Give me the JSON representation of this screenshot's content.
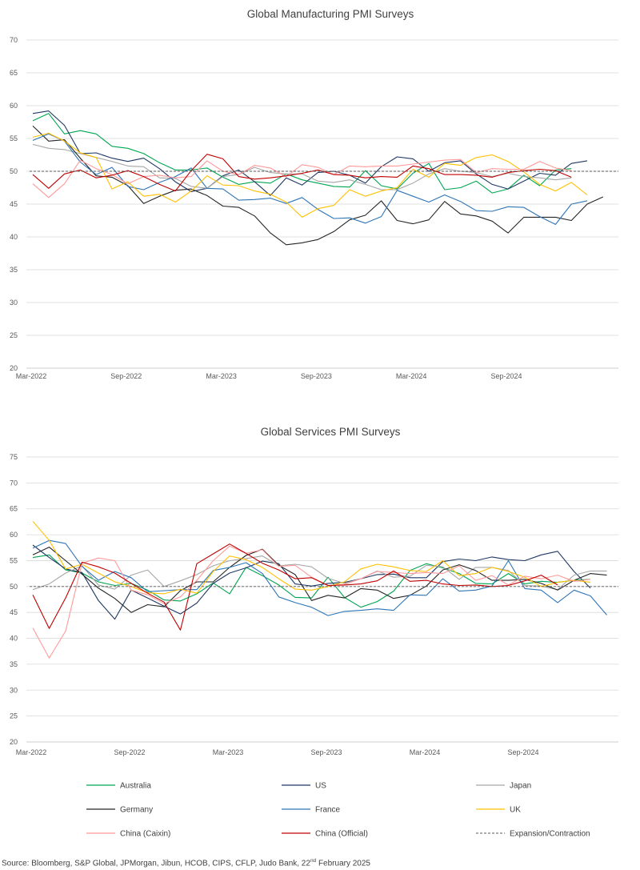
{
  "chart_data": [
    {
      "type": "line",
      "title": "Global Manufacturing PMI Surveys",
      "ylim": [
        20,
        70
      ],
      "yticks": [
        "20",
        "25",
        "30",
        "35",
        "40",
        "45",
        "50",
        "55",
        "60",
        "65",
        "70"
      ],
      "xticks": [
        "Mar-2022",
        "Sep-2022",
        "Mar-2023",
        "Sep-2023",
        "Mar-2024",
        "Sep-2024"
      ],
      "x_start": "Mar-2022",
      "grid": true,
      "series": [
        {
          "name": "Australia",
          "color": "#00a651",
          "values": [
            57.7,
            58.8,
            55.7,
            56.2,
            55.7,
            53.8,
            53.5,
            52.7,
            51.3,
            50.2,
            50.2,
            50.5,
            49.1,
            48.0,
            48.4,
            48.2,
            49.6,
            48.7,
            48.2,
            47.7,
            47.6,
            50.1,
            47.8,
            47.3,
            49.7,
            51.2,
            47.2,
            47.5,
            48.5,
            46.7,
            47.3,
            49.4,
            47.8,
            50.2,
            50.4
          ]
        },
        {
          "name": "US",
          "color": "#1f3864",
          "values": [
            58.8,
            59.2,
            57.0,
            52.7,
            52.8,
            52.0,
            51.5,
            52.0,
            50.4,
            48.4,
            46.9,
            47.4,
            49.3,
            50.2,
            48.4,
            46.3,
            49.0,
            47.9,
            49.8,
            50.0,
            49.4,
            48.2,
            50.7,
            52.2,
            51.9,
            50.0,
            51.3,
            51.6,
            49.6,
            48.0,
            47.3,
            48.5,
            49.7,
            49.4,
            51.2,
            51.6
          ]
        },
        {
          "name": "Japan",
          "color": "#a6a6a6",
          "values": [
            54.1,
            53.5,
            53.3,
            52.7,
            52.1,
            51.5,
            50.8,
            50.7,
            49.0,
            48.9,
            47.7,
            47.4,
            49.2,
            49.5,
            50.6,
            49.8,
            49.6,
            49.6,
            48.5,
            48.3,
            48.7,
            48.0,
            47.2,
            47.2,
            48.2,
            49.6,
            50.4,
            50.0,
            49.8,
            49.2,
            49.7,
            49.2,
            49.0,
            48.7,
            49.0
          ]
        },
        {
          "name": "Germany",
          "color": "#262626",
          "values": [
            56.9,
            54.6,
            54.8,
            52.0,
            49.3,
            49.1,
            47.8,
            45.1,
            46.2,
            47.1,
            47.3,
            46.3,
            44.7,
            44.5,
            43.2,
            40.6,
            38.8,
            39.1,
            39.6,
            40.8,
            42.6,
            43.3,
            45.5,
            42.5,
            42.0,
            42.6,
            45.4,
            43.5,
            43.2,
            42.4,
            40.6,
            43.0,
            43.0,
            43.0,
            42.5,
            45.0,
            46.1
          ]
        },
        {
          "name": "France",
          "color": "#2e75b6",
          "values": [
            54.7,
            55.7,
            54.6,
            51.4,
            49.5,
            50.6,
            47.7,
            47.2,
            48.3,
            49.2,
            50.5,
            47.4,
            47.3,
            45.6,
            45.7,
            45.9,
            45.1,
            46.0,
            44.2,
            42.8,
            42.9,
            42.1,
            43.1,
            47.1,
            46.2,
            45.3,
            46.4,
            45.4,
            44.0,
            43.9,
            44.6,
            44.5,
            43.1,
            41.9,
            45.0,
            45.5
          ]
        },
        {
          "name": "UK",
          "color": "#ffc000",
          "values": [
            55.2,
            55.8,
            54.6,
            52.8,
            52.1,
            47.3,
            48.4,
            46.2,
            46.5,
            45.3,
            47.0,
            49.3,
            47.9,
            47.8,
            47.0,
            46.5,
            45.3,
            43.0,
            44.3,
            44.8,
            47.2,
            46.2,
            47.0,
            47.5,
            50.3,
            49.1,
            51.2,
            50.9,
            52.1,
            52.5,
            51.5,
            49.9,
            48.0,
            47.0,
            48.3,
            46.4
          ]
        },
        {
          "name": "China (Caixin)",
          "color": "#ff9999",
          "values": [
            48.1,
            46.0,
            48.1,
            51.7,
            50.4,
            49.5,
            48.1,
            49.2,
            49.4,
            49.0,
            49.2,
            51.6,
            50.0,
            49.5,
            50.9,
            50.5,
            49.2,
            51.0,
            50.6,
            49.5,
            50.8,
            50.7,
            50.8,
            50.8,
            51.1,
            51.4,
            51.7,
            51.8,
            49.8,
            50.4,
            50.3,
            50.3,
            51.5,
            50.5,
            50.1
          ]
        },
        {
          "name": "China (Official)",
          "color": "#c00000",
          "values": [
            49.5,
            47.4,
            49.6,
            50.2,
            49.0,
            49.4,
            50.1,
            49.2,
            48.0,
            47.0,
            50.1,
            52.6,
            51.9,
            49.2,
            48.8,
            49.0,
            49.3,
            49.7,
            50.2,
            49.5,
            49.4,
            49.0,
            49.2,
            49.1,
            50.8,
            50.4,
            49.5,
            49.5,
            49.4,
            49.1,
            49.8,
            50.1,
            50.3,
            50.1,
            49.1
          ]
        },
        {
          "name": "Expansion/Contraction",
          "color": "#595959",
          "dashed": true,
          "values": [
            50,
            50
          ]
        }
      ]
    },
    {
      "type": "line",
      "title": "Global Services PMI Surveys",
      "ylim": [
        20,
        75
      ],
      "yticks": [
        "20",
        "25",
        "30",
        "35",
        "40",
        "45",
        "50",
        "55",
        "60",
        "65",
        "70",
        "75"
      ],
      "xticks": [
        "Mar-2022",
        "Sep-2022",
        "Mar-2023",
        "Sep-2023",
        "Mar-2024",
        "Sep-2024"
      ],
      "x_start": "Mar-2022",
      "grid": true,
      "series": [
        {
          "name": "Australia",
          "color": "#00a651",
          "values": [
            55.6,
            56.1,
            53.2,
            52.6,
            50.9,
            50.2,
            50.6,
            49.3,
            47.4,
            47.2,
            48.6,
            50.7,
            48.6,
            53.7,
            52.1,
            50.3,
            47.9,
            47.8,
            51.8,
            47.9,
            46.0,
            47.1,
            49.1,
            53.1,
            54.4,
            53.6,
            52.5,
            50.6,
            50.5,
            52.5,
            50.5,
            51.0,
            50.8,
            51.2,
            51.4
          ]
        },
        {
          "name": "US",
          "color": "#1f3864",
          "values": [
            58.0,
            55.6,
            53.4,
            52.7,
            47.3,
            43.7,
            49.3,
            47.8,
            46.2,
            44.7,
            46.8,
            50.6,
            52.6,
            53.6,
            54.9,
            54.4,
            50.5,
            50.1,
            50.6,
            50.8,
            51.5,
            52.3,
            52.4,
            51.7,
            51.7,
            54.8,
            55.3,
            55.0,
            55.7,
            55.2,
            55.0,
            56.1,
            56.8,
            52.9,
            49.7
          ]
        },
        {
          "name": "Japan",
          "color": "#a6a6a6",
          "values": [
            49.4,
            50.5,
            52.6,
            54.0,
            50.3,
            49.5,
            52.2,
            53.2,
            50.0,
            51.1,
            52.3,
            54.0,
            55.0,
            55.4,
            55.9,
            54.0,
            54.3,
            53.8,
            51.6,
            50.6,
            51.5,
            53.0,
            51.8,
            52.0,
            54.1,
            53.8,
            51.4,
            53.7,
            53.7,
            53.1,
            50.2,
            50.1,
            49.4,
            52.2,
            53.0,
            53.0
          ]
        },
        {
          "name": "Germany",
          "color": "#262626",
          "values": [
            56.1,
            57.6,
            55.0,
            52.4,
            49.7,
            47.7,
            45.0,
            46.5,
            46.1,
            49.2,
            50.9,
            50.9,
            53.7,
            56.0,
            57.2,
            54.1,
            52.3,
            47.3,
            48.3,
            47.8,
            49.6,
            49.3,
            47.7,
            48.3,
            50.1,
            53.2,
            54.2,
            53.1,
            51.2,
            51.2,
            51.4,
            50.6,
            49.3,
            51.2,
            52.5,
            52.2
          ]
        },
        {
          "name": "France",
          "color": "#2e75b6",
          "values": [
            57.4,
            58.9,
            58.3,
            53.9,
            51.2,
            52.9,
            51.7,
            49.0,
            49.2,
            49.4,
            49.4,
            53.1,
            53.7,
            54.6,
            52.5,
            48.0,
            46.9,
            46.0,
            44.4,
            45.2,
            45.4,
            45.7,
            45.4,
            48.4,
            48.3,
            51.5,
            49.1,
            49.3,
            50.1,
            55.0,
            49.6,
            49.3,
            46.9,
            49.3,
            48.2,
            44.5
          ]
        },
        {
          "name": "UK",
          "color": "#ffc000",
          "values": [
            62.6,
            58.9,
            53.4,
            54.3,
            52.6,
            50.9,
            50.0,
            48.8,
            48.6,
            49.5,
            48.7,
            52.9,
            55.9,
            55.2,
            53.7,
            51.5,
            49.5,
            49.3,
            50.0,
            50.9,
            53.4,
            54.3,
            53.8,
            53.1,
            52.9,
            55.0,
            52.1,
            52.5,
            53.7,
            52.9,
            51.8,
            50.0,
            50.8,
            51.2,
            50.8
          ]
        },
        {
          "name": "China (Caixin)",
          "color": "#ff9999",
          "values": [
            42.0,
            36.2,
            41.4,
            54.5,
            55.5,
            55.0,
            49.3,
            48.4,
            46.7,
            48.0,
            51.2,
            55.0,
            57.8,
            56.4,
            57.1,
            53.9,
            54.1,
            51.8,
            50.2,
            50.4,
            51.5,
            52.9,
            52.7,
            52.5,
            52.7,
            52.5,
            54.0,
            51.2,
            52.1,
            50.3,
            52.0,
            51.5,
            52.2,
            51.0,
            51.4
          ]
        },
        {
          "name": "China (Official)",
          "color": "#c00000",
          "values": [
            48.4,
            41.9,
            47.8,
            54.7,
            53.8,
            52.6,
            50.6,
            48.7,
            47.0,
            41.6,
            54.4,
            56.3,
            58.2,
            56.4,
            54.5,
            53.2,
            51.5,
            51.7,
            50.2,
            50.3,
            50.5,
            51.1,
            53.0,
            51.0,
            51.2,
            50.5,
            50.2,
            50.3,
            50.0,
            50.2,
            51.1,
            52.2,
            50.3
          ]
        },
        {
          "name": "Expansion/Contraction",
          "color": "#595959",
          "dashed": true,
          "values": [
            50,
            50
          ]
        }
      ]
    }
  ],
  "legend": [
    {
      "label": "Australia",
      "color": "#00a651"
    },
    {
      "label": "US",
      "color": "#1f3864"
    },
    {
      "label": "Japan",
      "color": "#a6a6a6"
    },
    {
      "label": "Germany",
      "color": "#262626"
    },
    {
      "label": "France",
      "color": "#2e75b6"
    },
    {
      "label": "UK",
      "color": "#ffc000"
    },
    {
      "label": "China (Caixin)",
      "color": "#ff9999"
    },
    {
      "label": "China (Official)",
      "color": "#c00000"
    },
    {
      "label": "Expansion/Contraction",
      "color": "#595959",
      "dashed": true
    }
  ],
  "source": {
    "prefix": "Source: Bloomberg, S&P Global, JPMorgan, Jibun, HCOB, CIPS, CFLP, Judo Bank, 22",
    "sup": "nd",
    "suffix": " February 2025"
  }
}
